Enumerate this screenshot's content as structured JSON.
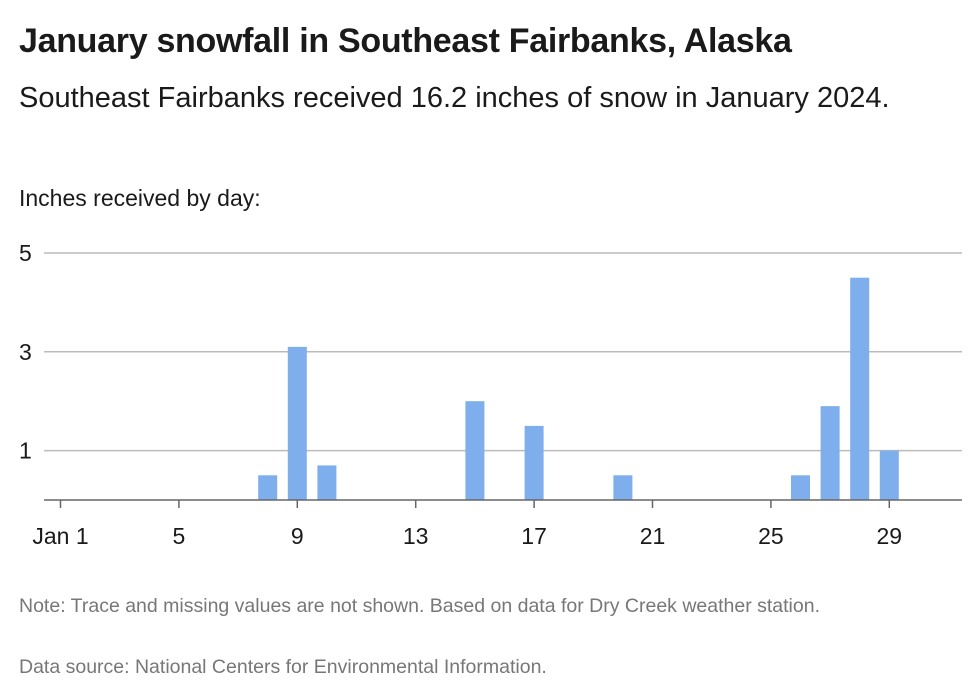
{
  "colors": {
    "bar": "#7eaeec",
    "grid": "#bbbbbb",
    "axis": "#666666",
    "text": "#1a1a1a",
    "muted": "#777777"
  },
  "chart_data": {
    "type": "bar",
    "title": "January snowfall in Southeast Fairbanks, Alaska",
    "subtitle": "Southeast Fairbanks received 16.2 inches of snow in January 2024.",
    "ylabel": "Inches received by day:",
    "xlabel": "",
    "x_ticks": [
      "Jan 1",
      "5",
      "9",
      "13",
      "17",
      "21",
      "25",
      "29"
    ],
    "x_tick_days": [
      1,
      5,
      9,
      13,
      17,
      21,
      25,
      29
    ],
    "y_ticks": [
      1,
      3,
      5
    ],
    "ylim": [
      0,
      5
    ],
    "xlim": [
      1,
      31
    ],
    "grid": true,
    "days": [
      8,
      9,
      10,
      15,
      17,
      20,
      26,
      27,
      28,
      29
    ],
    "values": [
      0.5,
      3.1,
      0.7,
      2.0,
      1.5,
      0.5,
      0.5,
      1.9,
      4.5,
      1.0
    ]
  },
  "footer": {
    "note": "Note: Trace and missing values are not shown. Based on data for Dry Creek weather station.",
    "source": "Data source: National Centers for Environmental Information."
  }
}
